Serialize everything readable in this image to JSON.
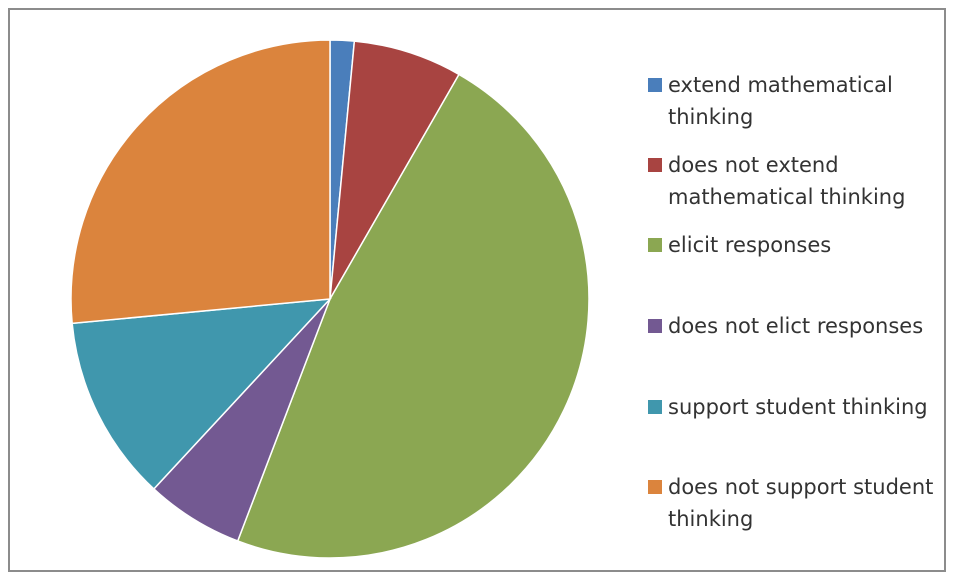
{
  "chart_data": {
    "type": "pie",
    "title": "",
    "slices": [
      {
        "label": "extend mathematical thinking",
        "value": 1.5,
        "color": "#4A7EBB"
      },
      {
        "label": "does not extend mathematical thinking",
        "value": 6.8,
        "color": "#A84441"
      },
      {
        "label": "elicit responses",
        "value": 47.5,
        "color": "#8BA752"
      },
      {
        "label": "does not elict responses",
        "value": 6.1,
        "color": "#735992"
      },
      {
        "label": "support student thinking",
        "value": 11.6,
        "color": "#4097AD"
      },
      {
        "label": "does not support student thinking",
        "value": 26.5,
        "color": "#DB843D"
      }
    ],
    "start_angle_deg": 0,
    "direction": "clockwise",
    "legend_position": "right"
  },
  "legend": {
    "lines": [
      [
        "extend mathematical",
        "thinking"
      ],
      [
        "does not extend",
        "mathematical thinking"
      ],
      [
        "elicit responses"
      ],
      [
        "does not elict responses"
      ],
      [
        "support student thinking"
      ],
      [
        "does not support student",
        "thinking"
      ]
    ]
  }
}
